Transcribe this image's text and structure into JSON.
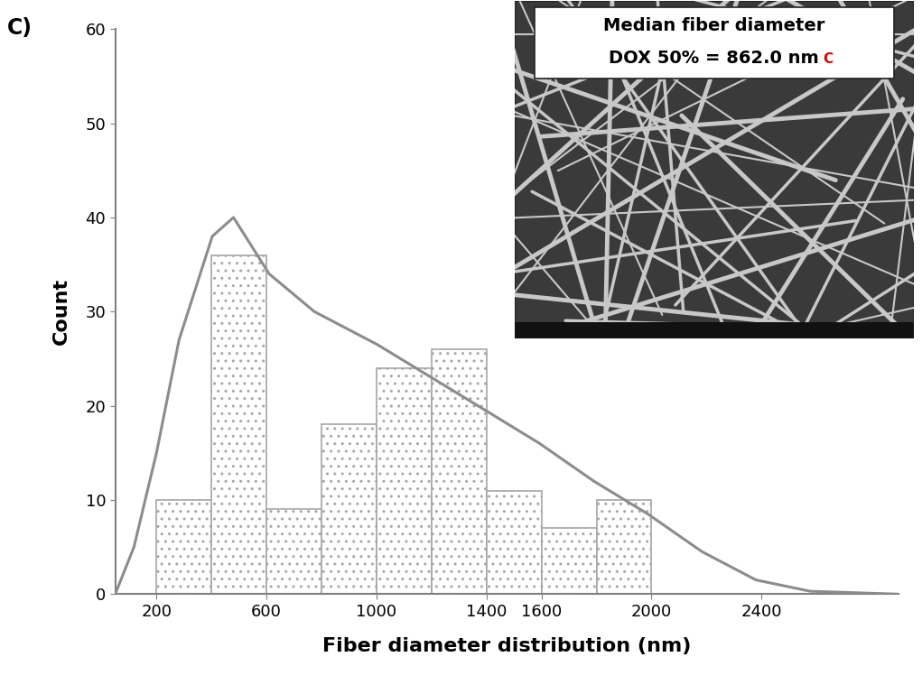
{
  "chart_data": {
    "type": "histogram",
    "panel_label": "C)",
    "x_label": "Fiber diameter distribution (nm)",
    "y_label": "Count",
    "bins": [
      200,
      400,
      600,
      800,
      1000,
      1200,
      1400,
      1600,
      1800,
      2000
    ],
    "counts": [
      10,
      36,
      9,
      18,
      24,
      26,
      11,
      7,
      10
    ],
    "color": "#ffffff",
    "series": [
      {
        "type": "line",
        "color": "#8c8c8c",
        "x": [
          50,
          118,
          200,
          282,
          403,
          480,
          610,
          774,
          1003,
          1200,
          1397,
          1593,
          1790,
          1987,
          2184,
          2380,
          2577,
          2889
        ],
        "values": [
          0,
          5,
          15,
          27,
          38,
          40,
          34,
          30,
          26.5,
          23,
          19.5,
          16,
          12,
          8.5,
          4.5,
          1.5,
          0.3,
          0
        ]
      }
    ],
    "xlim": [
      50,
      2900
    ],
    "xticks": [
      200,
      600,
      1000,
      1400,
      1600,
      2000,
      2400
    ],
    "ylim": [
      0,
      60
    ],
    "yticks": [
      0,
      10,
      20,
      30,
      40,
      50,
      60
    ],
    "grid": false,
    "inset_title": [
      "Median fiber diameter",
      "DOX 50% = 862.0 nm"
    ],
    "inset_note": "C"
  }
}
